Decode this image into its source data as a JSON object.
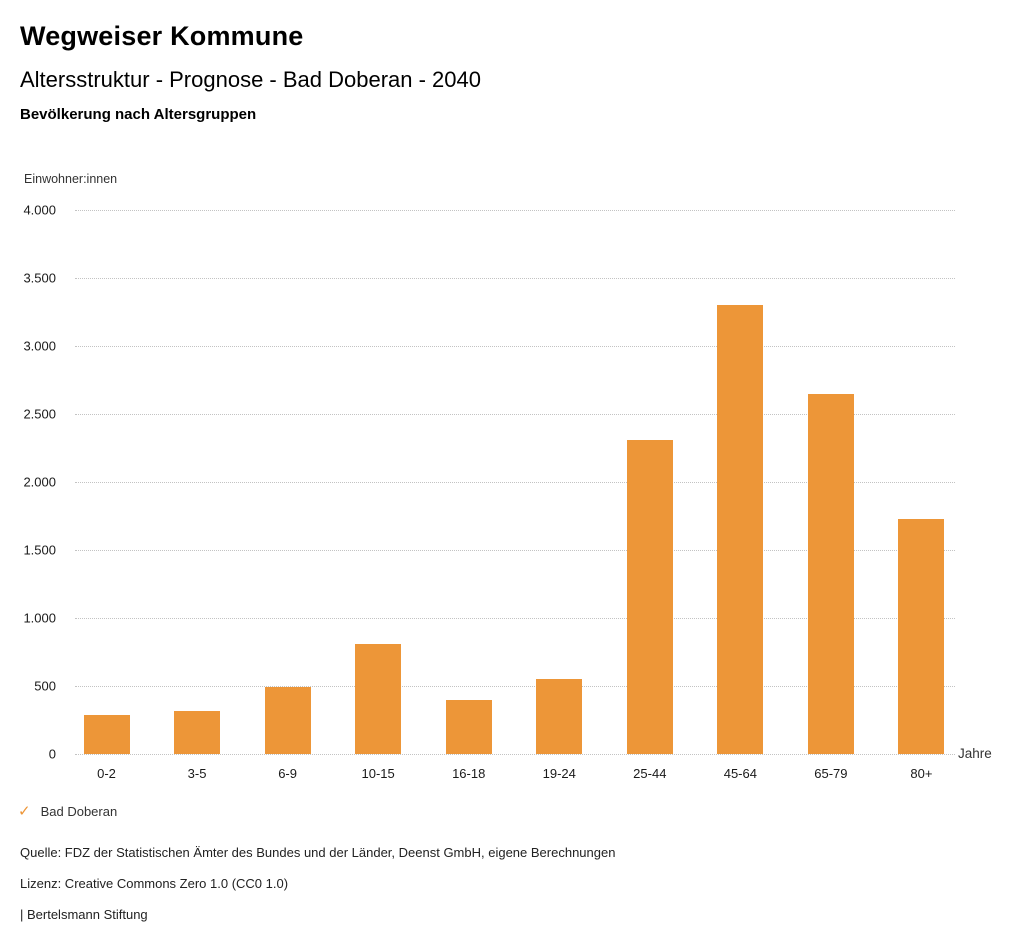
{
  "header": {
    "brand": "Wegweiser Kommune"
  },
  "chart_data": {
    "type": "bar",
    "title": "Altersstruktur - Prognose - Bad Doberan - 2040",
    "subtitle": "Bevölkerung nach Altersgruppen",
    "ylabel": "Einwohner:innen",
    "xlabel": "Jahre",
    "categories": [
      "0-2",
      "3-5",
      "6-9",
      "10-15",
      "16-18",
      "19-24",
      "25-44",
      "45-64",
      "65-79",
      "80+"
    ],
    "values": [
      285,
      320,
      490,
      810,
      395,
      555,
      2310,
      3300,
      2650,
      1730
    ],
    "series_name": "Bad Doberan",
    "ylim": [
      0,
      4000
    ],
    "yticks": [
      0,
      500,
      1000,
      1500,
      2000,
      2500,
      3000,
      3500,
      4000
    ],
    "ytick_labels": [
      "0",
      "500",
      "1.000",
      "1.500",
      "2.000",
      "2.500",
      "3.000",
      "3.500",
      "4.000"
    ],
    "grid": "horizontal-dotted",
    "bar_color": "#ED9638",
    "legend": {
      "position": "bottom-left",
      "check_icon": "✓",
      "entries": [
        "Bad Doberan"
      ]
    }
  },
  "footer": {
    "source": "Quelle: FDZ der Statistischen Ämter des Bundes und der Länder, Deenst GmbH, eigene Berechnungen",
    "license": "Lizenz: Creative Commons Zero 1.0 (CC0 1.0)",
    "attribution": "| Bertelsmann Stiftung"
  }
}
